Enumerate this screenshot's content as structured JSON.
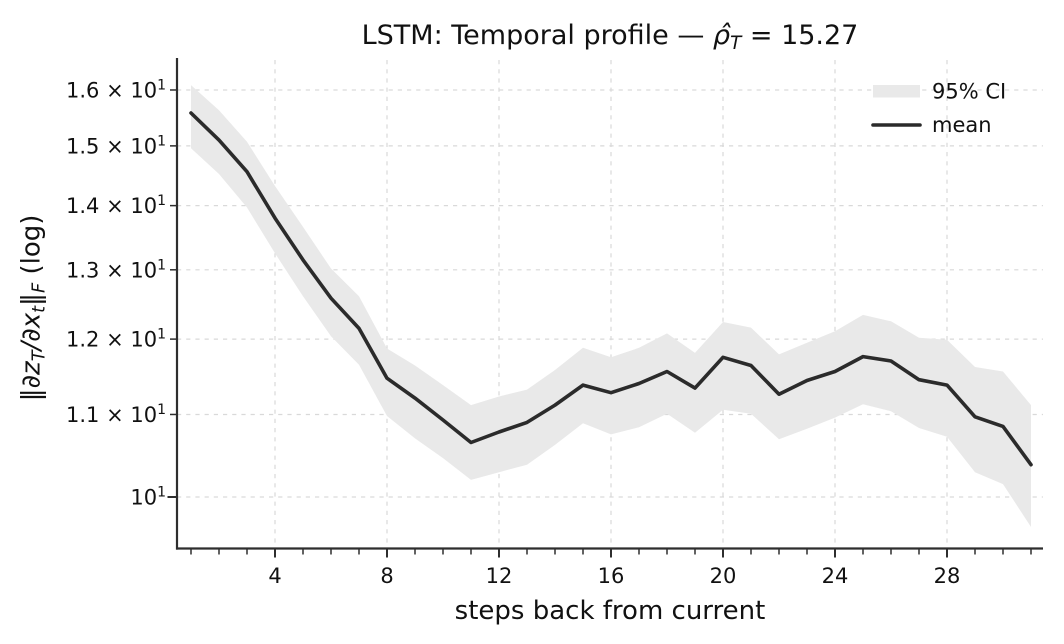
{
  "chart_data": {
    "type": "line",
    "title": "LSTM: Temporal profile — ρ̂_T = 15.27",
    "title_parts": {
      "prefix": "LSTM: Temporal profile — ",
      "rho": "ρ̂",
      "rho_sub": "T",
      "suffix": " = 15.27"
    },
    "xlabel": "steps back from current",
    "ylabel": "‖∂z_T/∂x_t‖_F (log)",
    "ylabel_parts": [
      {
        "text": "‖"
      },
      {
        "text": "∂z"
      },
      {
        "text": "T"
      },
      {
        "text": "/∂x"
      },
      {
        "text": "t"
      },
      {
        "text": "‖"
      },
      {
        "text": "F"
      },
      {
        "text": " (log)"
      }
    ],
    "yscale": "log",
    "grid": true,
    "legend_loc": "upper right",
    "xlim": [
      0.5,
      31.43
    ],
    "ylim": [
      9.42,
      16.57
    ],
    "x": [
      1,
      2,
      3,
      4,
      5,
      6,
      7,
      8,
      9,
      10,
      11,
      12,
      13,
      14,
      15,
      16,
      17,
      18,
      19,
      20,
      21,
      22,
      23,
      24,
      25,
      26,
      27,
      28,
      29,
      30,
      31
    ],
    "series": [
      {
        "name": "mean",
        "values": [
          15.58,
          15.1,
          14.56,
          13.8,
          13.15,
          12.58,
          12.15,
          11.47,
          11.21,
          10.93,
          10.65,
          10.78,
          10.9,
          11.12,
          11.38,
          11.28,
          11.4,
          11.56,
          11.34,
          11.75,
          11.64,
          11.26,
          11.44,
          11.56,
          11.76,
          11.7,
          11.45,
          11.38,
          10.97,
          10.85,
          10.38
        ]
      }
    ],
    "band": {
      "name": "95% CI",
      "upper": [
        16.09,
        15.63,
        15.07,
        14.32,
        13.66,
        13.02,
        12.61,
        11.87,
        11.64,
        11.38,
        11.12,
        11.23,
        11.32,
        11.58,
        11.88,
        11.75,
        11.88,
        12.08,
        11.81,
        12.24,
        12.16,
        11.79,
        11.95,
        12.11,
        12.34,
        12.25,
        12.02,
        11.99,
        11.62,
        11.56,
        11.12
      ],
      "lower": [
        14.96,
        14.52,
        13.97,
        13.25,
        12.61,
        12.04,
        11.65,
        10.98,
        10.7,
        10.46,
        10.2,
        10.29,
        10.38,
        10.62,
        10.89,
        10.75,
        10.84,
        11.01,
        10.77,
        11.06,
        11.01,
        10.69,
        10.82,
        10.96,
        11.13,
        11.04,
        10.83,
        10.72,
        10.29,
        10.15,
        9.66
      ]
    },
    "x_major_ticks": [
      4,
      8,
      12,
      16,
      20,
      24,
      28
    ],
    "y_ticks": [
      {
        "v": 10,
        "base": "10",
        "exp": "1",
        "major": true
      },
      {
        "v": 11,
        "base": "1.1 × 10",
        "exp": "1"
      },
      {
        "v": 12,
        "base": "1.2 × 10",
        "exp": "1"
      },
      {
        "v": 13,
        "base": "1.3 × 10",
        "exp": "1"
      },
      {
        "v": 14,
        "base": "1.4 × 10",
        "exp": "1"
      },
      {
        "v": 15,
        "base": "1.5 × 10",
        "exp": "1"
      },
      {
        "v": 16,
        "base": "1.6 × 10",
        "exp": "1"
      }
    ],
    "legend": [
      {
        "label": "95% CI",
        "type": "band"
      },
      {
        "label": "mean",
        "type": "line"
      }
    ],
    "colors": {
      "mean_line": "#2b2b2b",
      "band": "#e9e9e9",
      "grid": "#d9d9d9",
      "spine": "#2e2e2e",
      "text": "#111111"
    }
  }
}
